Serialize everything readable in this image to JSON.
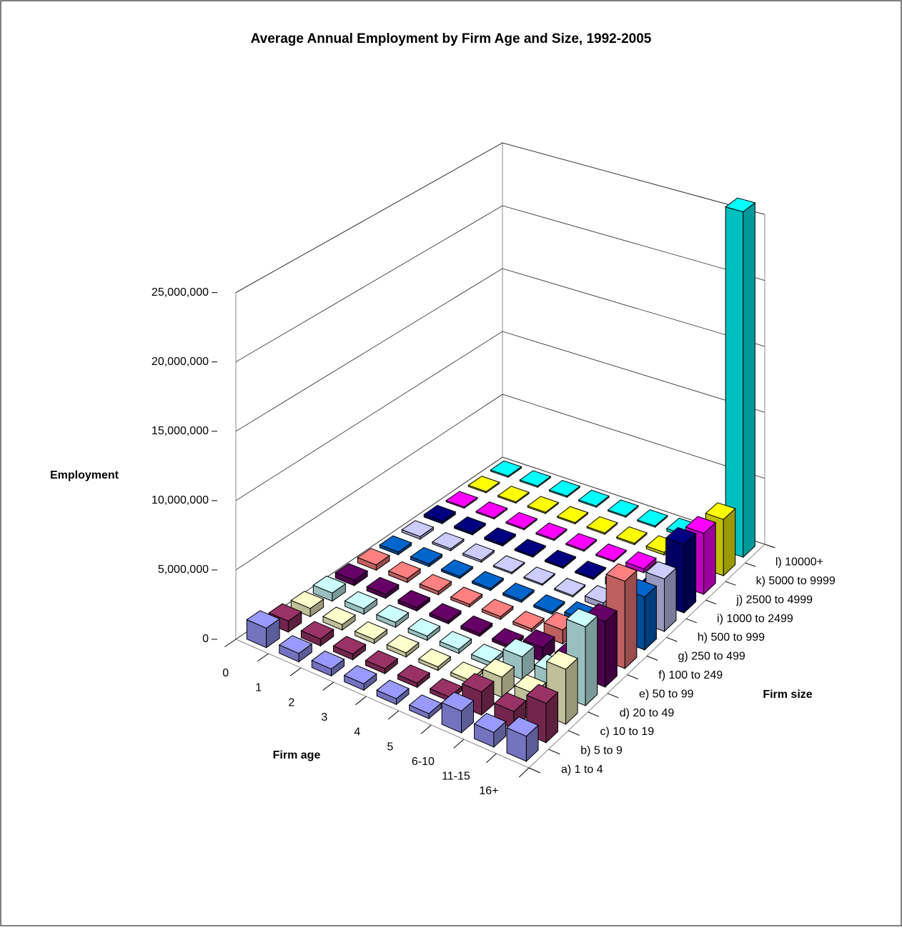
{
  "chart_data": {
    "type": "bar3d",
    "title": "Average Annual Employment by Firm Age and Size, 1992-2005",
    "y_label": "Employment",
    "x_label": "Firm age",
    "z_label": "Firm size",
    "categories": [
      "0",
      "1",
      "2",
      "3",
      "4",
      "5",
      "6-10",
      "11-15",
      "16+"
    ],
    "ylim": [
      0,
      25000000
    ],
    "yticks": [
      0,
      {
        "value": 5000000,
        "label": "5,000,000"
      },
      {
        "value": 10000000,
        "label": "10,000,000"
      },
      {
        "value": 15000000,
        "label": "15,000,000"
      },
      {
        "value": 20000000,
        "label": "20,000,000"
      },
      {
        "value": 25000000,
        "label": "25,000,000"
      }
    ],
    "grid": true,
    "series": [
      {
        "name": "a) 1 to 4",
        "color": "#9999ff",
        "values": [
          1400000,
          600000,
          500000,
          450000,
          400000,
          350000,
          1500000,
          1000000,
          1700000
        ]
      },
      {
        "name": "b) 5 to 9",
        "color": "#993366",
        "values": [
          800000,
          500000,
          400000,
          350000,
          300000,
          300000,
          1600000,
          1200000,
          2700000
        ]
      },
      {
        "name": "c) 10 to 19",
        "color": "#ffffcc",
        "values": [
          600000,
          400000,
          300000,
          300000,
          250000,
          250000,
          1400000,
          1200000,
          3800000
        ]
      },
      {
        "name": "d) 20 to 49",
        "color": "#ccffff",
        "values": [
          600000,
          400000,
          350000,
          300000,
          300000,
          300000,
          1600000,
          1400000,
          5500000
        ]
      },
      {
        "name": "e) 50 to 99",
        "color": "#660066",
        "values": [
          400000,
          300000,
          250000,
          200000,
          200000,
          200000,
          1000000,
          1000000,
          4600000
        ]
      },
      {
        "name": "f) 100 to 249",
        "color": "#ff8080",
        "values": [
          400000,
          300000,
          250000,
          200000,
          200000,
          200000,
          1000000,
          1000000,
          6200000
        ]
      },
      {
        "name": "g) 250 to 499",
        "color": "#0066cc",
        "values": [
          200000,
          200000,
          150000,
          150000,
          150000,
          150000,
          500000,
          600000,
          3800000
        ]
      },
      {
        "name": "h) 500 to 999",
        "color": "#ccccff",
        "values": [
          200000,
          150000,
          150000,
          100000,
          100000,
          100000,
          400000,
          500000,
          3800000
        ]
      },
      {
        "name": "i) 1000 to 2499",
        "color": "#000080",
        "values": [
          200000,
          150000,
          150000,
          100000,
          100000,
          100000,
          500000,
          600000,
          5000000
        ]
      },
      {
        "name": "j) 2500 to 4999",
        "color": "#ff00ff",
        "values": [
          100000,
          100000,
          100000,
          100000,
          100000,
          100000,
          300000,
          400000,
          4500000
        ]
      },
      {
        "name": "k) 5000 to 9999",
        "color": "#ffff00",
        "values": [
          100000,
          100000,
          100000,
          100000,
          100000,
          100000,
          200000,
          300000,
          4200000
        ]
      },
      {
        "name": "l) 10000+",
        "color": "#00ffff",
        "values": [
          100000,
          100000,
          100000,
          100000,
          100000,
          100000,
          200000,
          500000,
          26000000
        ]
      }
    ]
  }
}
